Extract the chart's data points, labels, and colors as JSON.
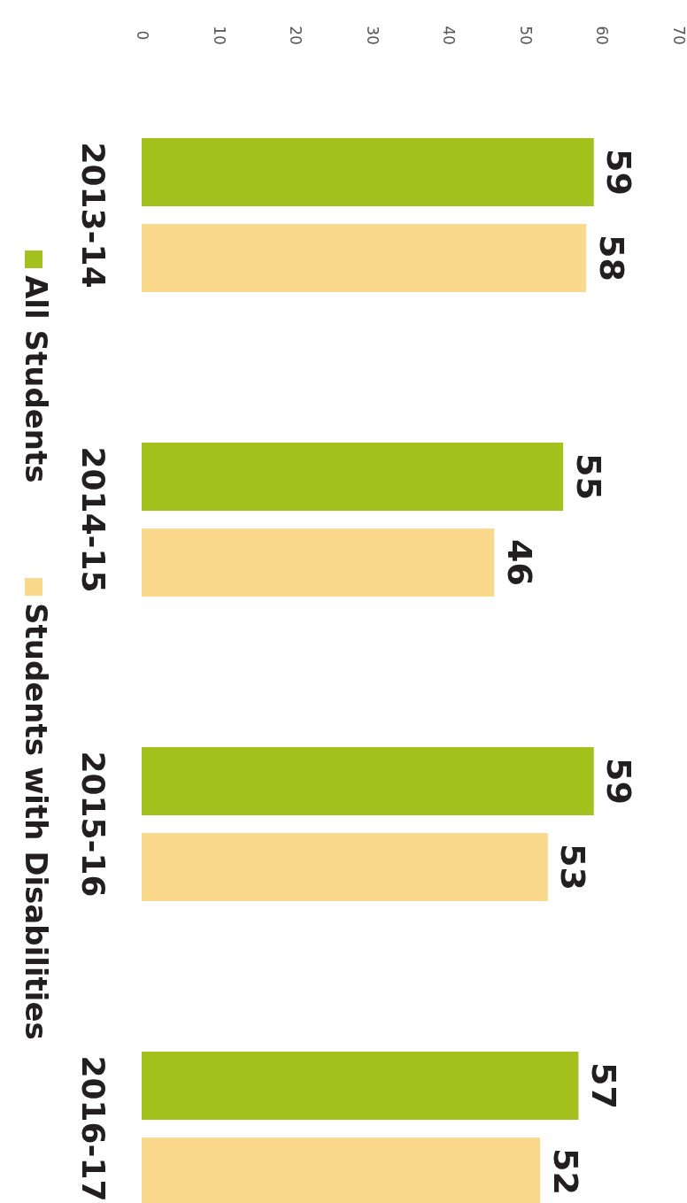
{
  "chart_data": {
    "type": "bar",
    "orientation": "horizontal",
    "categories": [
      "2013-14",
      "2014-15",
      "2015-16",
      "2016-17"
    ],
    "series": [
      {
        "name": "All Students",
        "color": "#a5c11e",
        "values": [
          59,
          55,
          59,
          57
        ]
      },
      {
        "name": "Students with Disabilities",
        "color": "#fbd98c",
        "values": [
          58,
          46,
          53,
          52
        ]
      }
    ],
    "xlim": [
      0,
      70
    ],
    "xticks": [
      0,
      10,
      20,
      30,
      40,
      50,
      60,
      70
    ],
    "data_labels": true,
    "legend": "left",
    "grid": false
  }
}
